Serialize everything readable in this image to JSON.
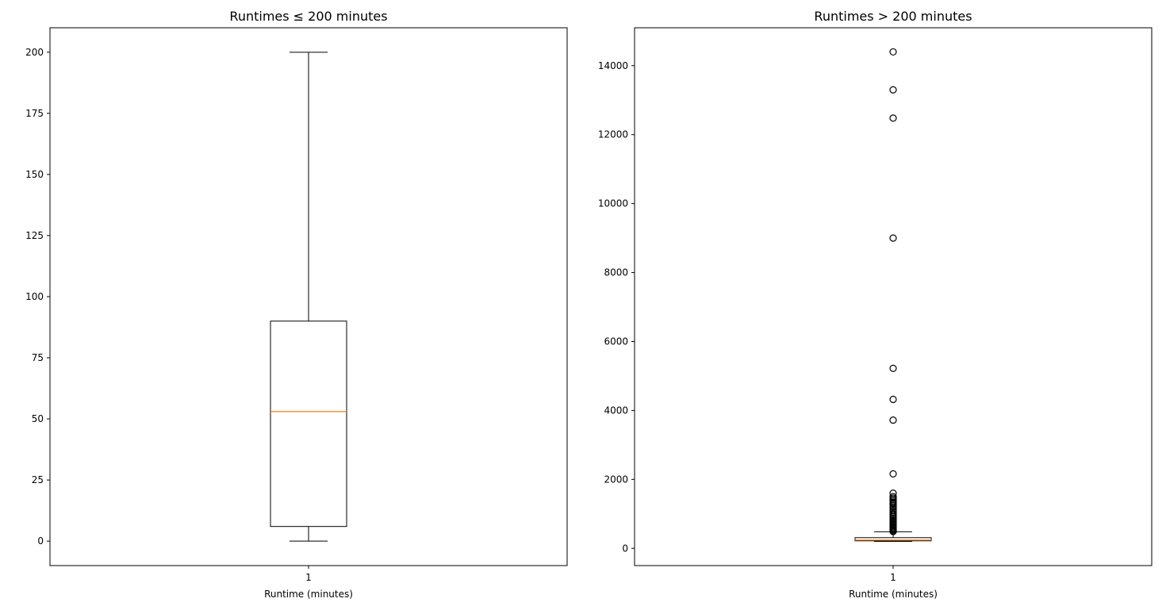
{
  "chart_data": [
    {
      "type": "box",
      "title": "Runtimes ≤ 200 minutes",
      "xlabel": "Runtime (minutes)",
      "ylabel": "",
      "categories": [
        "1"
      ],
      "ylim": [
        -10,
        210
      ],
      "yticks": [
        0,
        25,
        50,
        75,
        100,
        125,
        150,
        175,
        200
      ],
      "median_color": "#ff7f0e",
      "box": {
        "whislo": 0,
        "q1": 6,
        "med": 53,
        "q3": 90,
        "whishi": 200,
        "fliers": []
      }
    },
    {
      "type": "box",
      "title": "Runtimes > 200 minutes",
      "xlabel": "Runtime (minutes)",
      "ylabel": "",
      "categories": [
        "1"
      ],
      "ylim": [
        -500,
        15100
      ],
      "yticks": [
        0,
        2000,
        4000,
        6000,
        8000,
        10000,
        12000,
        14000
      ],
      "median_color": "#ff7f0e",
      "box": {
        "whislo": 201,
        "q1": 218,
        "med": 240,
        "q3": 310,
        "whishi": 480,
        "fliers": [
          14400,
          13300,
          12480,
          9000,
          5220,
          4320,
          3720,
          2160,
          1600,
          1500,
          1460,
          1420,
          1380,
          1340,
          1300,
          1250,
          1200,
          1150,
          1100,
          1050,
          1000,
          960,
          920,
          880,
          840,
          800,
          760,
          720,
          690,
          660,
          630,
          600,
          570,
          540,
          510,
          490
        ]
      }
    }
  ]
}
